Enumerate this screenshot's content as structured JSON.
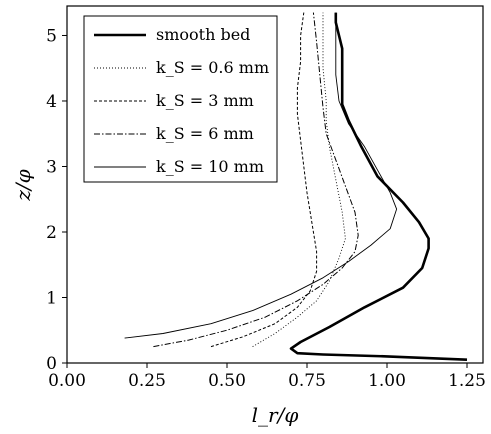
{
  "chart_data": {
    "type": "line",
    "xlabel": "l_r/φ",
    "ylabel": "z/φ",
    "xlim": [
      0.0,
      1.3
    ],
    "ylim": [
      0.0,
      5.45
    ],
    "x_ticks": [
      "0.00",
      "0.25",
      "0.50",
      "0.75",
      "1.00",
      "1.25"
    ],
    "y_ticks": [
      "0",
      "1",
      "2",
      "3",
      "4",
      "5"
    ],
    "grid": false,
    "legend_position": "top-left",
    "series": [
      {
        "name": "smooth bed",
        "style": "solid-thick",
        "points": [
          [
            1.25,
            0.05
          ],
          [
            1.0,
            0.1
          ],
          [
            0.8,
            0.13
          ],
          [
            0.72,
            0.15
          ],
          [
            0.7,
            0.22
          ],
          [
            0.73,
            0.32
          ],
          [
            0.82,
            0.55
          ],
          [
            0.93,
            0.85
          ],
          [
            1.05,
            1.15
          ],
          [
            1.11,
            1.45
          ],
          [
            1.13,
            1.75
          ],
          [
            1.13,
            1.9
          ],
          [
            1.1,
            2.15
          ],
          [
            1.05,
            2.45
          ],
          [
            0.97,
            2.85
          ],
          [
            0.92,
            3.3
          ],
          [
            0.88,
            3.7
          ],
          [
            0.86,
            3.95
          ],
          [
            0.86,
            4.2
          ],
          [
            0.86,
            4.5
          ],
          [
            0.86,
            4.8
          ],
          [
            0.85,
            5.0
          ],
          [
            0.84,
            5.2
          ],
          [
            0.84,
            5.35
          ]
        ]
      },
      {
        "name": "k_S = 0.6 mm",
        "style": "dotted",
        "points": [
          [
            0.58,
            0.25
          ],
          [
            0.65,
            0.45
          ],
          [
            0.72,
            0.7
          ],
          [
            0.78,
            0.95
          ],
          [
            0.82,
            1.25
          ],
          [
            0.85,
            1.6
          ],
          [
            0.87,
            1.9
          ],
          [
            0.86,
            2.3
          ],
          [
            0.84,
            2.8
          ],
          [
            0.82,
            3.3
          ],
          [
            0.81,
            3.7
          ],
          [
            0.81,
            4.0
          ],
          [
            0.8,
            4.5
          ],
          [
            0.8,
            4.9
          ],
          [
            0.8,
            5.35
          ]
        ]
      },
      {
        "name": "k_S = 3 mm",
        "style": "dashed",
        "points": [
          [
            0.45,
            0.25
          ],
          [
            0.55,
            0.4
          ],
          [
            0.65,
            0.6
          ],
          [
            0.72,
            0.85
          ],
          [
            0.76,
            1.1
          ],
          [
            0.78,
            1.4
          ],
          [
            0.78,
            1.7
          ],
          [
            0.77,
            2.0
          ],
          [
            0.76,
            2.3
          ],
          [
            0.75,
            2.6
          ],
          [
            0.74,
            3.0
          ],
          [
            0.73,
            3.4
          ],
          [
            0.72,
            3.8
          ],
          [
            0.72,
            4.2
          ],
          [
            0.73,
            4.6
          ],
          [
            0.73,
            5.0
          ],
          [
            0.74,
            5.35
          ]
        ]
      },
      {
        "name": "k_S = 6 mm",
        "style": "dashdot",
        "points": [
          [
            0.27,
            0.25
          ],
          [
            0.38,
            0.35
          ],
          [
            0.5,
            0.5
          ],
          [
            0.62,
            0.7
          ],
          [
            0.72,
            0.95
          ],
          [
            0.8,
            1.2
          ],
          [
            0.86,
            1.45
          ],
          [
            0.9,
            1.7
          ],
          [
            0.91,
            1.95
          ],
          [
            0.9,
            2.3
          ],
          [
            0.87,
            2.7
          ],
          [
            0.84,
            3.1
          ],
          [
            0.81,
            3.5
          ],
          [
            0.8,
            3.9
          ],
          [
            0.79,
            4.4
          ],
          [
            0.78,
            4.9
          ],
          [
            0.77,
            5.35
          ]
        ]
      },
      {
        "name": "k_S = 10 mm",
        "style": "solid-thin",
        "points": [
          [
            0.18,
            0.38
          ],
          [
            0.3,
            0.45
          ],
          [
            0.45,
            0.6
          ],
          [
            0.58,
            0.8
          ],
          [
            0.7,
            1.05
          ],
          [
            0.8,
            1.3
          ],
          [
            0.88,
            1.55
          ],
          [
            0.95,
            1.8
          ],
          [
            1.01,
            2.05
          ],
          [
            1.03,
            2.35
          ],
          [
            1.01,
            2.6
          ],
          [
            0.97,
            2.95
          ],
          [
            0.93,
            3.3
          ],
          [
            0.88,
            3.65
          ],
          [
            0.85,
            4.0
          ],
          [
            0.84,
            4.4
          ],
          [
            0.84,
            4.8
          ],
          [
            0.84,
            5.35
          ]
        ]
      }
    ]
  }
}
